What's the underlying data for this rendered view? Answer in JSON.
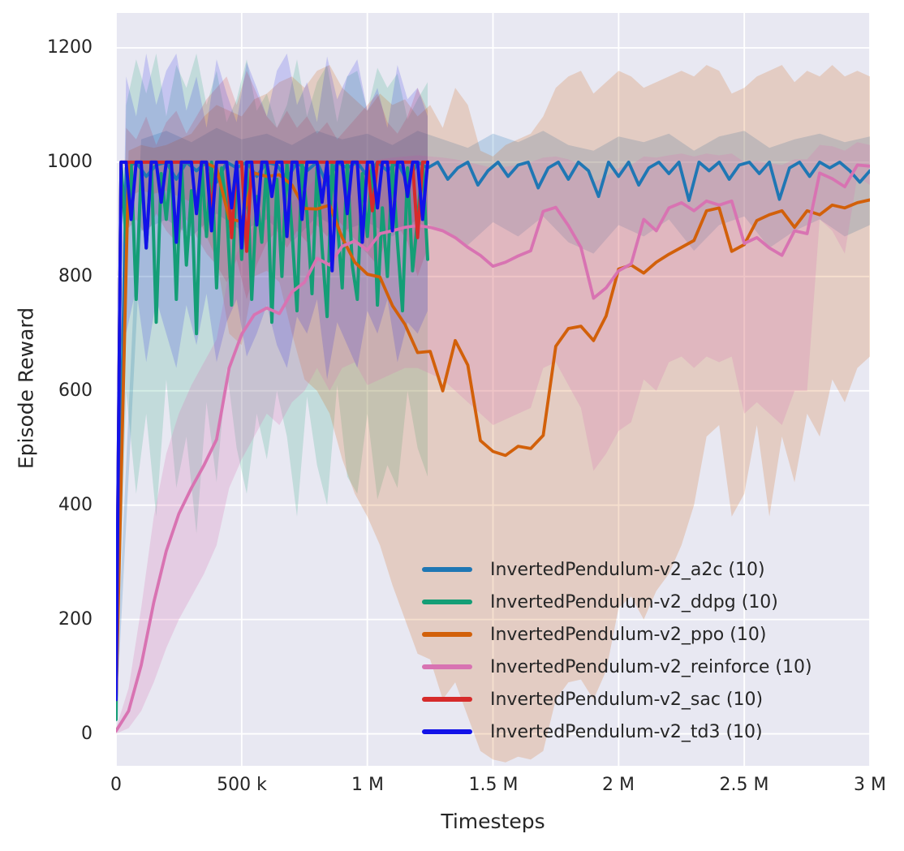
{
  "figure": {
    "background": "#ffffff",
    "plot_background": "#e8e8f2",
    "grid_color": "#ffffff",
    "text_color": "#262626"
  },
  "chart_data": {
    "type": "line",
    "title": "",
    "xlabel": "Timesteps",
    "ylabel": "Episode Reward",
    "x_unit": "timesteps (millions)",
    "xlim": [
      0,
      3
    ],
    "ylim": [
      -56,
      1261
    ],
    "grid": true,
    "legend_position": "lower right",
    "xticks": {
      "values": [
        0,
        0.5,
        1,
        1.5,
        2,
        2.5,
        3
      ],
      "labels": [
        "0",
        "500 k",
        "1 M",
        "1.5 M",
        "2 M",
        "2.5 M",
        "3 M"
      ]
    },
    "yticks": {
      "values": [
        0,
        200,
        400,
        600,
        800,
        1000,
        1200
      ],
      "labels": [
        "0",
        "200",
        "400",
        "600",
        "800",
        "1000",
        "1200"
      ]
    },
    "series": [
      {
        "key": "a2c",
        "label": "InvertedPendulum-v2_a2c (10)",
        "color": "#1f77b4",
        "band_alpha": 0.22,
        "lw": 3.8,
        "x_start": 0,
        "x_step": 0.04,
        "y": [
          55,
          990,
          1000,
          975,
          995,
          1000,
          970,
          1000,
          985,
          1000,
          965,
          1000,
          990,
          1000,
          975,
          1000,
          995,
          970,
          1000,
          985,
          1000,
          960,
          1000,
          990,
          1000,
          975,
          1000,
          985,
          1000,
          965,
          1000,
          990,
          1000,
          970,
          990,
          1000,
          960,
          985,
          1000,
          975,
          995,
          1000,
          955,
          990,
          1000,
          970,
          1000,
          985,
          940,
          1000,
          975,
          1000,
          960,
          990,
          1000,
          980,
          1000,
          933,
          1000,
          985,
          1000,
          970,
          995,
          1000,
          980,
          1000,
          935,
          990,
          1000,
          975,
          1000,
          990,
          1000,
          985,
          965,
          985
        ],
        "bx_start": 0,
        "bx_step": 0.1,
        "lo": [
          20,
          880,
          900,
          870,
          910,
          880,
          900,
          860,
          905,
          880,
          895,
          870,
          900,
          880,
          855,
          895,
          870,
          905,
          860,
          840,
          890,
          870,
          900,
          845,
          890,
          905,
          850,
          880,
          900,
          870,
          890
        ],
        "hi": [
          90,
          1040,
          1055,
          1035,
          1060,
          1040,
          1050,
          1030,
          1055,
          1040,
          1050,
          1030,
          1055,
          1040,
          1025,
          1050,
          1035,
          1055,
          1030,
          1020,
          1045,
          1035,
          1050,
          1020,
          1045,
          1055,
          1025,
          1040,
          1050,
          1035,
          1045
        ]
      },
      {
        "key": "ddpg",
        "label": "InvertedPendulum-v2_ddpg (10)",
        "color": "#149e76",
        "band_alpha": 0.18,
        "lw": 4,
        "x_start": 0,
        "x_step": 0.02,
        "y": [
          25,
          1000,
          860,
          1000,
          760,
          990,
          850,
          1000,
          720,
          980,
          900,
          1000,
          760,
          1000,
          820,
          950,
          700,
          1000,
          870,
          1000,
          780,
          990,
          920,
          750,
          1000,
          830,
          1000,
          760,
          940,
          860,
          1000,
          720,
          970,
          800,
          1000,
          880,
          740,
          1000,
          910,
          770,
          990,
          850,
          730,
          1000,
          900,
          780,
          1000,
          820,
          760,
          980,
          870,
          1000,
          750,
          920,
          800,
          1000,
          860,
          740,
          990,
          810,
          900,
          1000,
          830
        ],
        "bx_start": 0,
        "bx_step": 0.04,
        "lo": [
          0,
          600,
          420,
          560,
          380,
          620,
          430,
          520,
          350,
          580,
          440,
          640,
          500,
          420,
          560,
          480,
          600,
          520,
          380,
          590,
          470,
          400,
          610,
          450,
          420,
          560,
          410,
          470,
          430,
          600,
          500,
          450
        ],
        "hi": [
          50,
          1100,
          1180,
          1120,
          1190,
          1080,
          1170,
          1130,
          1190,
          1100,
          1160,
          1070,
          1110,
          1180,
          1090,
          1120,
          1060,
          1100,
          1180,
          1080,
          1140,
          1170,
          1070,
          1150,
          1160,
          1090,
          1165,
          1130,
          1155,
          1075,
          1110,
          1140
        ]
      },
      {
        "key": "ppo",
        "label": "InvertedPendulum-v2_ppo (10)",
        "color": "#d2600a",
        "band_alpha": 0.2,
        "lw": 3.8,
        "x_start": 0,
        "x_step": 0.05,
        "y": [
          60,
          1000,
          1000,
          1000,
          1000,
          1000,
          1000,
          1000,
          990,
          901,
          896,
          981,
          975,
          978,
          960,
          919,
          918,
          925,
          868,
          825,
          804,
          799,
          749,
          716,
          667,
          669,
          600,
          688,
          645,
          513,
          494,
          487,
          503,
          499,
          522,
          678,
          709,
          713,
          688,
          731,
          813,
          820,
          806,
          825,
          839,
          851,
          863,
          915,
          920,
          844,
          856,
          898,
          908,
          915,
          886,
          915,
          908,
          925,
          920,
          929,
          934
        ],
        "bx_start": 0,
        "bx_step": 0.05,
        "lo": [
          55,
          940,
          950,
          945,
          950,
          940,
          930,
          880,
          830,
          700,
          680,
          800,
          810,
          790,
          700,
          620,
          600,
          560,
          480,
          420,
          380,
          330,
          260,
          200,
          140,
          130,
          60,
          90,
          30,
          -30,
          -45,
          -50,
          -40,
          -45,
          -30,
          60,
          90,
          95,
          60,
          110,
          220,
          240,
          200,
          250,
          280,
          330,
          400,
          520,
          540,
          380,
          420,
          540,
          380,
          520,
          440,
          560,
          520,
          620,
          580,
          640,
          660
        ],
        "hi": [
          65,
          1020,
          1030,
          1025,
          1030,
          1040,
          1050,
          1080,
          1100,
          1090,
          1080,
          1110,
          1120,
          1140,
          1150,
          1130,
          1160,
          1170,
          1130,
          1110,
          1090,
          1120,
          1100,
          1110,
          1080,
          1100,
          1060,
          1130,
          1100,
          1020,
          1010,
          1030,
          1040,
          1050,
          1080,
          1130,
          1150,
          1160,
          1120,
          1140,
          1160,
          1150,
          1130,
          1140,
          1150,
          1160,
          1150,
          1170,
          1160,
          1120,
          1130,
          1150,
          1160,
          1170,
          1140,
          1160,
          1150,
          1170,
          1150,
          1160,
          1150
        ]
      },
      {
        "key": "reinforce",
        "label": "InvertedPendulum-v2_reinforce (10)",
        "color": "#d873b2",
        "band_alpha": 0.24,
        "lw": 3.8,
        "x_start": 0,
        "x_step": 0.05,
        "y": [
          5,
          40,
          120,
          230,
          320,
          385,
          430,
          470,
          515,
          640,
          699,
          733,
          745,
          735,
          773,
          790,
          832,
          820,
          853,
          862,
          846,
          875,
          880,
          886,
          889,
          886,
          880,
          868,
          851,
          837,
          818,
          825,
          836,
          845,
          914,
          921,
          889,
          851,
          762,
          780,
          810,
          822,
          900,
          880,
          920,
          929,
          915,
          932,
          925,
          932,
          858,
          868,
          850,
          837,
          880,
          875,
          981,
          971,
          957,
          995,
          993
        ],
        "bx_start": 0,
        "bx_step": 0.05,
        "lo": [
          0,
          10,
          40,
          90,
          150,
          200,
          240,
          280,
          330,
          430,
          480,
          520,
          560,
          540,
          580,
          600,
          640,
          600,
          640,
          650,
          610,
          620,
          630,
          640,
          640,
          630,
          620,
          600,
          580,
          560,
          540,
          550,
          560,
          570,
          640,
          650,
          610,
          570,
          460,
          490,
          530,
          545,
          620,
          600,
          650,
          660,
          640,
          660,
          650,
          660,
          560,
          580,
          560,
          540,
          600,
          600,
          900,
          880,
          840,
          975,
          960
        ],
        "hi": [
          10,
          80,
          220,
          380,
          490,
          560,
          610,
          650,
          690,
          810,
          860,
          890,
          910,
          900,
          930,
          950,
          975,
          970,
          990,
          1000,
          1000,
          1005,
          1008,
          1010,
          1012,
          1010,
          1008,
          1005,
          1000,
          995,
          990,
          992,
          995,
          1000,
          1008,
          1010,
          1005,
          995,
          965,
          975,
          990,
          995,
          1010,
          1008,
          1012,
          1015,
          1010,
          1015,
          1012,
          1015,
          1000,
          1002,
          998,
          995,
          1005,
          1005,
          1030,
          1028,
          1020,
          1035,
          1030
        ]
      },
      {
        "key": "sac",
        "label": "InvertedPendulum-v2_sac (10)",
        "color": "#d62b2b",
        "band_alpha": 0.18,
        "lw": 4,
        "x_start": 0,
        "x_step": 0.02,
        "y": [
          60,
          1000,
          1000,
          1000,
          1000,
          1000,
          1000,
          1000,
          1000,
          1000,
          1000,
          1000,
          1000,
          1000,
          1000,
          1000,
          1000,
          1000,
          1000,
          915,
          1000,
          1000,
          1000,
          868,
          1000,
          1000,
          844,
          1000,
          1000,
          1000,
          1000,
          1000,
          1000,
          1000,
          1000,
          1000,
          1000,
          1000,
          1000,
          1000,
          1000,
          1000,
          1000,
          1000,
          1000,
          1000,
          1000,
          1000,
          1000,
          1000,
          1000,
          915,
          1000,
          1000,
          1000,
          1000,
          1000,
          1000,
          1000,
          1000,
          868,
          1000,
          1000
        ],
        "bx_start": 0,
        "bx_step": 0.04,
        "lo": [
          20,
          880,
          900,
          870,
          910,
          880,
          860,
          900,
          870,
          840,
          820,
          790,
          830,
          760,
          820,
          860,
          880,
          850,
          880,
          860,
          890,
          870,
          900,
          880,
          860,
          840,
          820,
          870,
          890,
          860,
          800,
          850
        ],
        "hi": [
          100,
          1060,
          1040,
          1080,
          1030,
          1070,
          1090,
          1050,
          1080,
          1110,
          1130,
          1150,
          1100,
          1160,
          1120,
          1080,
          1060,
          1090,
          1060,
          1080,
          1050,
          1070,
          1040,
          1060,
          1080,
          1100,
          1120,
          1070,
          1050,
          1080,
          1130,
          1090
        ]
      },
      {
        "key": "td3",
        "label": "InvertedPendulum-v2_td3 (10)",
        "color": "#1212e8",
        "band_alpha": 0.16,
        "lw": 4,
        "x_start": 0,
        "x_step": 0.02,
        "y": [
          60,
          1000,
          1000,
          900,
          1000,
          1000,
          850,
          1000,
          1000,
          930,
          1000,
          1000,
          860,
          1000,
          1000,
          1000,
          910,
          1000,
          1000,
          880,
          1000,
          1000,
          1000,
          920,
          1000,
          850,
          1000,
          1000,
          890,
          1000,
          1000,
          940,
          1000,
          1000,
          870,
          1000,
          1000,
          900,
          1000,
          1000,
          1000,
          930,
          1000,
          810,
          1000,
          1000,
          910,
          1000,
          1000,
          860,
          1000,
          1000,
          920,
          1000,
          1000,
          880,
          1000,
          1000,
          940,
          1000,
          1000,
          900,
          1000
        ],
        "bx_start": 0,
        "bx_step": 0.04,
        "lo": [
          20,
          700,
          780,
          650,
          760,
          700,
          640,
          750,
          680,
          770,
          650,
          720,
          760,
          660,
          700,
          750,
          680,
          640,
          730,
          700,
          760,
          620,
          720,
          680,
          640,
          740,
          700,
          760,
          650,
          720,
          700,
          740
        ],
        "hi": [
          100,
          1150,
          1080,
          1190,
          1100,
          1160,
          1190,
          1090,
          1150,
          1060,
          1180,
          1120,
          1070,
          1175,
          1130,
          1080,
          1160,
          1190,
          1100,
          1140,
          1070,
          1185,
          1110,
          1150,
          1180,
          1090,
          1130,
          1060,
          1170,
          1110,
          1130,
          1080
        ]
      }
    ]
  }
}
